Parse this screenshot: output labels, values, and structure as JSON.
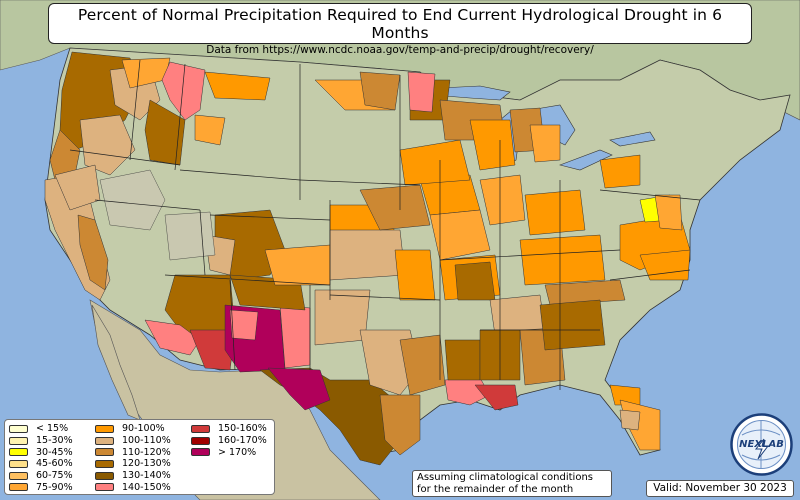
{
  "title": "Percent of Normal Precipitation Required to End Current Hydrological Drought in 6 Months",
  "subtitle": "Data from https://www.ncdc.noaa.gov/temp-and-precip/drought/recovery/",
  "note_line1": "Assuming climatological conditions",
  "note_line2": "for the remainder of the month",
  "valid": "Valid: November 30 2023",
  "logo_text": "NEXLAB",
  "colors": {
    "ocean": "#8fb4e0",
    "land": "#c7cfb2",
    "land_green": "#b5c69a",
    "border": "#222222"
  },
  "legend": [
    {
      "label": "< 15%",
      "color": "#ffffd0"
    },
    {
      "label": "15-30%",
      "color": "#fff3b0"
    },
    {
      "label": "30-45%",
      "color": "#ffff00"
    },
    {
      "label": "45-60%",
      "color": "#ffe08a"
    },
    {
      "label": "60-75%",
      "color": "#ffc060"
    },
    {
      "label": "75-90%",
      "color": "#ffa633"
    },
    {
      "label": "90-100%",
      "color": "#ff9900"
    },
    {
      "label": "100-110%",
      "color": "#ddb27f"
    },
    {
      "label": "110-120%",
      "color": "#cc8833"
    },
    {
      "label": "120-130%",
      "color": "#a86a00"
    },
    {
      "label": "130-140%",
      "color": "#8a5a00"
    },
    {
      "label": "140-150%",
      "color": "#ff8080"
    },
    {
      "label": "150-160%",
      "color": "#d03a3a"
    },
    {
      "label": "160-170%",
      "color": "#a00000"
    },
    {
      "label": "> 170%",
      "color": "#b0005a"
    }
  ]
}
